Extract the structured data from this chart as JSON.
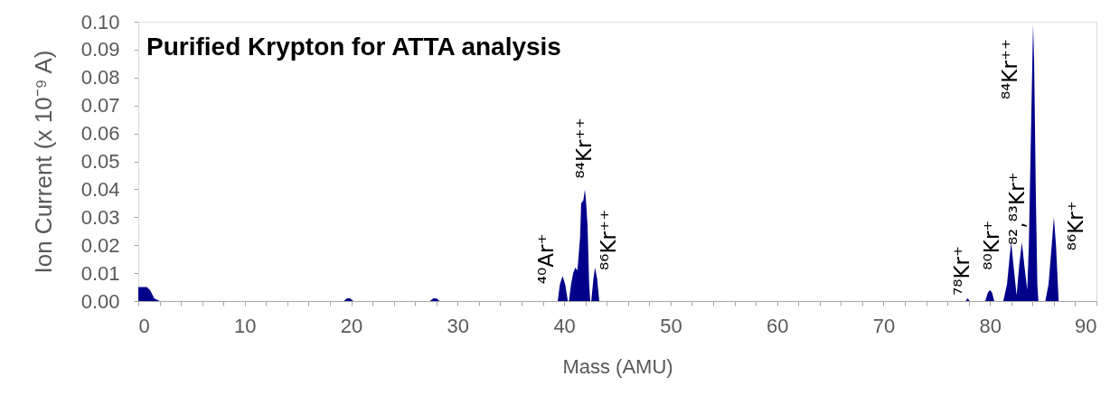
{
  "chart_data": {
    "type": "area",
    "title": "Purified Krypton for ATTA analysis",
    "xlabel": "Mass (AMU)",
    "ylabel": "Ion Current (x 10⁻⁹ A)",
    "color": "#00008b",
    "x": [
      0,
      0.8,
      1.1,
      1.5,
      2.0,
      19.3,
      19.6,
      19.9,
      20.2,
      27.4,
      27.7,
      28.0,
      28.3,
      39.4,
      39.6,
      39.85,
      40.1,
      40.35,
      40.45,
      40.65,
      40.85,
      41.05,
      41.25,
      41.5,
      41.6,
      41.8,
      41.95,
      42.05,
      42.2,
      42.35,
      42.45,
      42.55,
      42.75,
      42.9,
      43.1,
      43.3,
      77.7,
      77.9,
      78.1,
      79.55,
      79.8,
      80.0,
      80.2,
      80.4,
      81.25,
      81.6,
      81.85,
      82.0,
      82.2,
      82.5,
      82.75,
      83.0,
      83.25,
      83.5,
      83.65,
      83.85,
      84.0,
      84.05,
      84.15,
      84.3,
      84.45,
      84.55,
      85.2,
      85.5,
      85.8,
      86.0,
      86.2,
      86.45,
      90
    ],
    "values": [
      0.005,
      0.005,
      0.004,
      0.001,
      0,
      0,
      0.001,
      0.001,
      0,
      0,
      0.001,
      0.001,
      0,
      0,
      0.006,
      0.009,
      0.006,
      0,
      0,
      0.006,
      0.01,
      0.012,
      0.011,
      0.023,
      0.035,
      0.036,
      0.04,
      0.036,
      0.027,
      0.006,
      0,
      0,
      0.008,
      0.012,
      0.008,
      0,
      0,
      0.001,
      0,
      0,
      0.003,
      0.004,
      0.003,
      0,
      0,
      0.006,
      0.016,
      0.021,
      0.013,
      0.002,
      0.013,
      0.021,
      0.012,
      0.004,
      0.02,
      0.06,
      0.09,
      0.099,
      0.085,
      0.04,
      0.006,
      0,
      0,
      0.006,
      0.02,
      0.03,
      0.02,
      0,
      0
    ],
    "xlim": [
      0,
      90
    ],
    "ylim": [
      0,
      0.1
    ],
    "xticks": [
      0,
      {
        "value": 2,
        "label": null
      },
      {
        "value": 4,
        "label": null
      },
      {
        "value": 6,
        "label": null
      },
      {
        "value": 8,
        "label": null
      },
      10,
      {
        "value": 12,
        "label": null
      },
      {
        "value": 14,
        "label": null
      },
      {
        "value": 16,
        "label": null
      },
      {
        "value": 18,
        "label": null
      },
      20,
      {
        "value": 22,
        "label": null
      },
      {
        "value": 24,
        "label": null
      },
      {
        "value": 26,
        "label": null
      },
      {
        "value": 28,
        "label": null
      },
      30,
      {
        "value": 32,
        "label": null
      },
      {
        "value": 34,
        "label": null
      },
      {
        "value": 36,
        "label": null
      },
      {
        "value": 38,
        "label": null
      },
      40,
      {
        "value": 42,
        "label": null
      },
      {
        "value": 44,
        "label": null
      },
      {
        "value": 46,
        "label": null
      },
      {
        "value": 48,
        "label": null
      },
      50,
      {
        "value": 52,
        "label": null
      },
      {
        "value": 54,
        "label": null
      },
      {
        "value": 56,
        "label": null
      },
      {
        "value": 58,
        "label": null
      },
      60,
      {
        "value": 62,
        "label": null
      },
      {
        "value": 64,
        "label": null
      },
      {
        "value": 66,
        "label": null
      },
      {
        "value": 68,
        "label": null
      },
      70,
      {
        "value": 72,
        "label": null
      },
      {
        "value": 74,
        "label": null
      },
      {
        "value": 76,
        "label": null
      },
      {
        "value": 78,
        "label": null
      },
      80,
      {
        "value": 82,
        "label": null
      },
      {
        "value": 84,
        "label": null
      },
      {
        "value": 86,
        "label": null
      },
      {
        "value": 88,
        "label": null
      },
      90
    ],
    "yticks": [
      {
        "value": 0,
        "label": "0.00"
      },
      {
        "value": 0.01,
        "label": "0.01"
      },
      {
        "value": 0.02,
        "label": "0.02"
      },
      {
        "value": 0.03,
        "label": "0.03"
      },
      {
        "value": 0.04,
        "label": "0.04"
      },
      {
        "value": 0.05,
        "label": "0.05"
      },
      {
        "value": 0.06,
        "label": "0.06"
      },
      {
        "value": 0.07,
        "label": "0.07"
      },
      {
        "value": 0.08,
        "label": "0.08"
      },
      {
        "value": 0.09,
        "label": "0.09"
      },
      {
        "value": 0.1,
        "label": "0.10"
      }
    ],
    "annotations": [
      {
        "text": "⁴⁰Ar⁺",
        "x": 39.85,
        "y": 0.009
      },
      {
        "text": "⁸⁴Kr⁺⁺",
        "x": 41.95,
        "y": 0.04
      },
      {
        "text": "⁸⁶Kr⁺⁺",
        "x": 42.9,
        "y": 0.012
      },
      {
        "text": "⁷⁸Kr⁺",
        "x": 77.9,
        "y": 0.001
      },
      {
        "text": "⁸⁰Kr⁺",
        "x": 80.0,
        "y": 0.004
      },
      {
        "text": "⁸²,⁸³Kr⁺",
        "x": 83.0,
        "y": 0.021
      },
      {
        "text": "⁸⁴Kr⁺⁺",
        "x": 84.05,
        "y": 0.099
      },
      {
        "text": "⁸⁶Kr⁺",
        "x": 86.0,
        "y": 0.03
      }
    ]
  }
}
